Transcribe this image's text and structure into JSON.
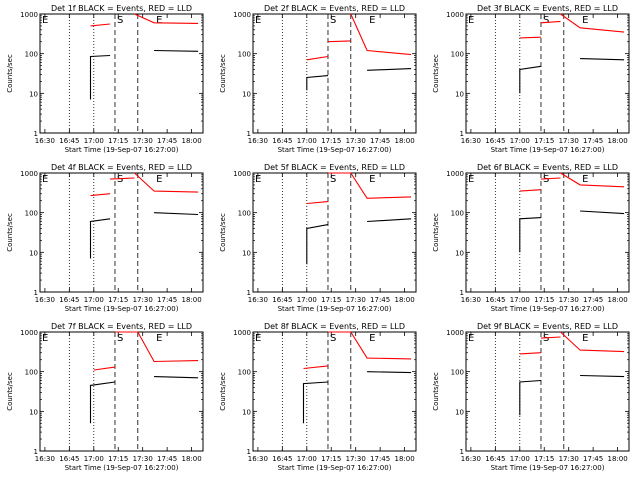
{
  "figure": {
    "ylabel": "Counts/sec",
    "xlabel": "Start Time (19-Sep-07 16:27:00)",
    "xticks": [
      "16:30",
      "16:45",
      "17:00",
      "17:15",
      "17:30",
      "17:45",
      "18:00"
    ],
    "yticks": [
      "1",
      "10",
      "100",
      "1000"
    ],
    "marker_labels": [
      "E",
      "S",
      "E"
    ],
    "colors": {
      "events": "#000000",
      "lld": "#ff0000"
    }
  },
  "chart_data": [
    {
      "type": "line",
      "title": "Det 1f BLACK = Events, RED = LLD",
      "xlabel": "Start Time (19-Sep-07 16:27:00)",
      "ylabel": "Counts/sec",
      "xlim": [
        "16:27",
        "18:07"
      ],
      "ylim": [
        1,
        1000
      ],
      "yscale": "log",
      "series": [
        {
          "name": "LLD",
          "segments": [
            {
              "x": [
                "16:58",
                "17:10"
              ],
              "y": [
                500,
                560
              ]
            },
            {
              "x": [
                "17:25",
                "17:37",
                "18:04"
              ],
              "y": [
                1000,
                600,
                580
              ]
            }
          ]
        },
        {
          "name": "Events",
          "segments": [
            {
              "x": [
                "16:58",
                "16:58",
                "17:10"
              ],
              "y": [
                7,
                85,
                90
              ]
            },
            {
              "x": [
                "17:37",
                "18:04"
              ],
              "y": [
                120,
                115
              ]
            }
          ]
        }
      ]
    },
    {
      "type": "line",
      "title": "Det 2f BLACK = Events, RED = LLD",
      "xlabel": "Start Time (19-Sep-07 16:27:00)",
      "ylabel": "Counts/sec",
      "xlim": [
        "16:27",
        "18:07"
      ],
      "ylim": [
        1,
        1000
      ],
      "yscale": "log",
      "series": [
        {
          "name": "LLD",
          "segments": [
            {
              "x": [
                "17:00",
                "17:13"
              ],
              "y": [
                70,
                85
              ]
            },
            {
              "x": [
                "17:13",
                "17:27"
              ],
              "y": [
                200,
                210
              ]
            },
            {
              "x": [
                "17:27",
                "17:37",
                "18:04"
              ],
              "y": [
                1000,
                120,
                95
              ]
            }
          ]
        },
        {
          "name": "Events",
          "segments": [
            {
              "x": [
                "17:00",
                "17:00",
                "17:13"
              ],
              "y": [
                12,
                25,
                28
              ]
            },
            {
              "x": [
                "17:37",
                "18:04"
              ],
              "y": [
                38,
                42
              ]
            }
          ]
        }
      ]
    },
    {
      "type": "line",
      "title": "Det 3f BLACK = Events, RED = LLD",
      "xlabel": "Start Time (19-Sep-07 16:27:00)",
      "ylabel": "Counts/sec",
      "xlim": [
        "16:27",
        "18:07"
      ],
      "ylim": [
        1,
        1000
      ],
      "yscale": "log",
      "series": [
        {
          "name": "LLD",
          "segments": [
            {
              "x": [
                "17:00",
                "17:13"
              ],
              "y": [
                250,
                260
              ]
            },
            {
              "x": [
                "17:13",
                "17:25"
              ],
              "y": [
                600,
                650
              ]
            },
            {
              "x": [
                "17:25",
                "17:37",
                "18:04"
              ],
              "y": [
                1000,
                450,
                350
              ]
            }
          ]
        },
        {
          "name": "Events",
          "segments": [
            {
              "x": [
                "17:00",
                "17:00",
                "17:13"
              ],
              "y": [
                10,
                40,
                48
              ]
            },
            {
              "x": [
                "17:37",
                "18:04"
              ],
              "y": [
                75,
                70
              ]
            }
          ]
        }
      ]
    },
    {
      "type": "line",
      "title": "Det 4f BLACK = Events, RED = LLD",
      "xlabel": "Start Time (19-Sep-07 16:27:00)",
      "ylabel": "Counts/sec",
      "xlim": [
        "16:27",
        "18:07"
      ],
      "ylim": [
        1,
        1000
      ],
      "yscale": "log",
      "series": [
        {
          "name": "LLD",
          "segments": [
            {
              "x": [
                "16:58",
                "17:10"
              ],
              "y": [
                270,
                300
              ]
            },
            {
              "x": [
                "17:10",
                "17:25"
              ],
              "y": [
                700,
                750
              ]
            },
            {
              "x": [
                "17:25",
                "17:37",
                "18:04"
              ],
              "y": [
                1000,
                350,
                330
              ]
            }
          ]
        },
        {
          "name": "Events",
          "segments": [
            {
              "x": [
                "16:58",
                "16:58",
                "17:10"
              ],
              "y": [
                7,
                60,
                70
              ]
            },
            {
              "x": [
                "17:37",
                "18:04"
              ],
              "y": [
                100,
                90
              ]
            }
          ]
        }
      ]
    },
    {
      "type": "line",
      "title": "Det 5f BLACK = Events, RED = LLD",
      "xlabel": "Start Time (19-Sep-07 16:27:00)",
      "ylabel": "Counts/sec",
      "xlim": [
        "16:27",
        "18:07"
      ],
      "ylim": [
        1,
        1000
      ],
      "yscale": "log",
      "series": [
        {
          "name": "LLD",
          "segments": [
            {
              "x": [
                "17:00",
                "17:13"
              ],
              "y": [
                170,
                190
              ]
            },
            {
              "x": [
                "17:13",
                "17:27"
              ],
              "y": [
                1000,
                1000
              ]
            },
            {
              "x": [
                "17:27",
                "17:37",
                "18:04"
              ],
              "y": [
                1000,
                230,
                250
              ]
            }
          ]
        },
        {
          "name": "Events",
          "segments": [
            {
              "x": [
                "17:00",
                "17:00",
                "17:13"
              ],
              "y": [
                5,
                40,
                50
              ]
            },
            {
              "x": [
                "17:37",
                "18:04"
              ],
              "y": [
                60,
                70
              ]
            }
          ]
        }
      ]
    },
    {
      "type": "line",
      "title": "Det 6f BLACK = Events, RED = LLD",
      "xlabel": "Start Time (19-Sep-07 16:27:00)",
      "ylabel": "Counts/sec",
      "xlim": [
        "16:27",
        "18:07"
      ],
      "ylim": [
        1,
        1000
      ],
      "yscale": "log",
      "series": [
        {
          "name": "LLD",
          "segments": [
            {
              "x": [
                "17:00",
                "17:13"
              ],
              "y": [
                350,
                380
              ]
            },
            {
              "x": [
                "17:13",
                "17:25"
              ],
              "y": [
                700,
                750
              ]
            },
            {
              "x": [
                "17:25",
                "17:37",
                "18:04"
              ],
              "y": [
                1000,
                500,
                450
              ]
            }
          ]
        },
        {
          "name": "Events",
          "segments": [
            {
              "x": [
                "17:00",
                "17:00",
                "17:13"
              ],
              "y": [
                10,
                70,
                75
              ]
            },
            {
              "x": [
                "17:37",
                "18:04"
              ],
              "y": [
                110,
                95
              ]
            }
          ]
        }
      ]
    },
    {
      "type": "line",
      "title": "Det 7f BLACK = Events, RED = LLD",
      "xlabel": "Start Time (19-Sep-07 16:27:00)",
      "ylabel": "Counts/sec",
      "xlim": [
        "16:27",
        "18:07"
      ],
      "ylim": [
        1,
        1000
      ],
      "yscale": "log",
      "series": [
        {
          "name": "LLD",
          "segments": [
            {
              "x": [
                "17:00",
                "17:13"
              ],
              "y": [
                110,
                130
              ]
            },
            {
              "x": [
                "17:13",
                "17:27"
              ],
              "y": [
                1000,
                1000
              ]
            },
            {
              "x": [
                "17:27",
                "17:37",
                "18:04"
              ],
              "y": [
                1000,
                180,
                190
              ]
            }
          ]
        },
        {
          "name": "Events",
          "segments": [
            {
              "x": [
                "16:58",
                "16:58",
                "17:13"
              ],
              "y": [
                5,
                45,
                55
              ]
            },
            {
              "x": [
                "17:37",
                "18:04"
              ],
              "y": [
                75,
                70
              ]
            }
          ]
        }
      ]
    },
    {
      "type": "line",
      "title": "Det 8f BLACK = Events, RED = LLD",
      "xlabel": "Start Time (19-Sep-07 16:27:00)",
      "ylabel": "Counts/sec",
      "xlim": [
        "16:27",
        "18:07"
      ],
      "ylim": [
        1,
        1000
      ],
      "yscale": "log",
      "series": [
        {
          "name": "LLD",
          "segments": [
            {
              "x": [
                "16:58",
                "17:13"
              ],
              "y": [
                120,
                140
              ]
            },
            {
              "x": [
                "17:13",
                "17:27"
              ],
              "y": [
                1000,
                1000
              ]
            },
            {
              "x": [
                "17:27",
                "17:37",
                "18:04"
              ],
              "y": [
                1000,
                220,
                210
              ]
            }
          ]
        },
        {
          "name": "Events",
          "segments": [
            {
              "x": [
                "16:58",
                "16:58",
                "17:13"
              ],
              "y": [
                5,
                50,
                55
              ]
            },
            {
              "x": [
                "17:37",
                "18:04"
              ],
              "y": [
                100,
                95
              ]
            }
          ]
        }
      ]
    },
    {
      "type": "line",
      "title": "Det 9f BLACK = Events, RED = LLD",
      "xlabel": "Start Time (19-Sep-07 16:27:00)",
      "ylabel": "Counts/sec",
      "xlim": [
        "16:27",
        "18:07"
      ],
      "ylim": [
        1,
        1000
      ],
      "yscale": "log",
      "series": [
        {
          "name": "LLD",
          "segments": [
            {
              "x": [
                "17:00",
                "17:13"
              ],
              "y": [
                280,
                300
              ]
            },
            {
              "x": [
                "17:13",
                "17:25"
              ],
              "y": [
                700,
                750
              ]
            },
            {
              "x": [
                "17:25",
                "17:37",
                "18:04"
              ],
              "y": [
                1000,
                350,
                320
              ]
            }
          ]
        },
        {
          "name": "Events",
          "segments": [
            {
              "x": [
                "17:00",
                "17:00",
                "17:13"
              ],
              "y": [
                8,
                55,
                60
              ]
            },
            {
              "x": [
                "17:37",
                "18:04"
              ],
              "y": [
                80,
                75
              ]
            }
          ]
        }
      ]
    }
  ]
}
